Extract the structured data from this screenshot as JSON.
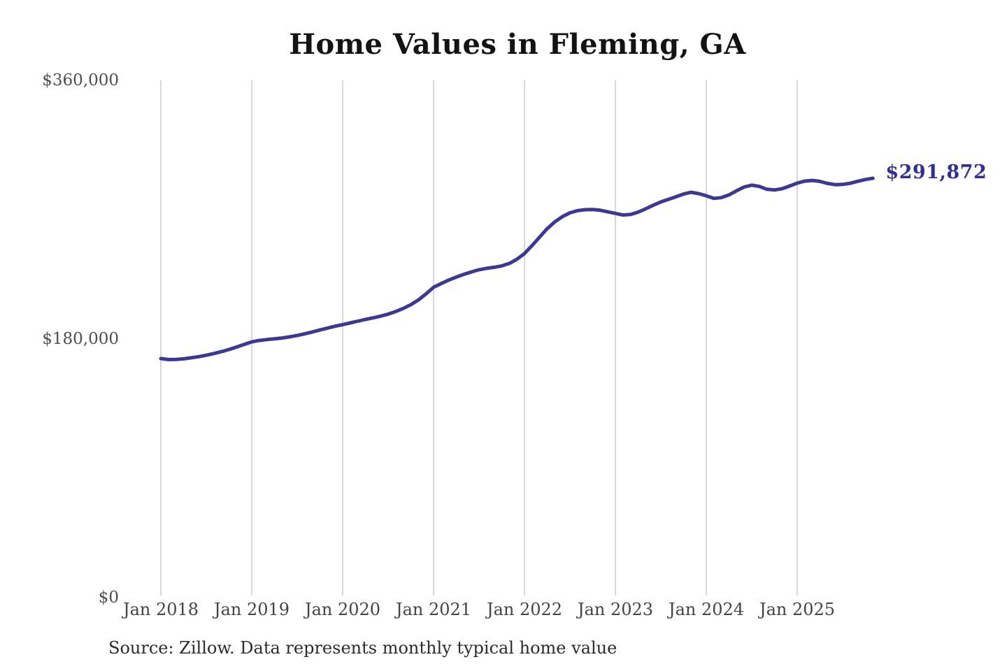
{
  "source": "Source: Zillow. Data represents monthly typical home value",
  "colors": {
    "background": "#ffffff",
    "line": "#3d3798",
    "end_label": "#322e97",
    "title": "#131313",
    "y_axis_label": "#4e4e4e",
    "x_axis_label": "#444444",
    "gridline": "#cccccc",
    "source_text": "#2b2b2b"
  },
  "chart_data": {
    "type": "line",
    "title": "Home Values in Fleming, GA",
    "end_label": "$291,872",
    "end_value": 291872,
    "x_start_month": "Jan 2018",
    "x_end_month": "Nov 2025",
    "x_tick_labels": [
      "Jan 2018",
      "Jan 2019",
      "Jan 2020",
      "Jan 2021",
      "Jan 2022",
      "Jan 2023",
      "Jan 2024",
      "Jan 2025"
    ],
    "y_ticks": [
      {
        "value": 360000,
        "label": "$360,000"
      },
      {
        "value": 180000,
        "label": "$180,000"
      },
      {
        "value": 0,
        "label": "$0"
      }
    ],
    "ylim": [
      0,
      360000
    ],
    "grid": "vertical",
    "legend_position": "none",
    "series": [
      {
        "name": "Monthly typical home value",
        "frequency": "monthly",
        "values": [
          166400,
          165700,
          165800,
          166200,
          166900,
          167700,
          168700,
          169900,
          171200,
          172700,
          174400,
          176200,
          178000,
          179000,
          179600,
          180100,
          180700,
          181500,
          182500,
          183600,
          184900,
          186300,
          187600,
          188900,
          190000,
          191200,
          192400,
          193600,
          194700,
          195900,
          197300,
          199100,
          201300,
          203900,
          207200,
          211400,
          216000,
          218600,
          221000,
          223100,
          225000,
          226700,
          228200,
          229200,
          229900,
          230900,
          232600,
          235500,
          239500,
          245000,
          251000,
          256800,
          261500,
          265200,
          267800,
          269300,
          270000,
          270100,
          269600,
          268500,
          267400,
          266300,
          266700,
          268300,
          270600,
          273100,
          275400,
          277200,
          279000,
          280900,
          282100,
          281200,
          279700,
          277900,
          278400,
          280300,
          283200,
          285800,
          287100,
          286200,
          284200,
          283700,
          284600,
          286500,
          288500,
          289900,
          290400,
          289700,
          288300,
          287400,
          287600,
          288400,
          289800,
          291000,
          291872
        ]
      }
    ]
  }
}
